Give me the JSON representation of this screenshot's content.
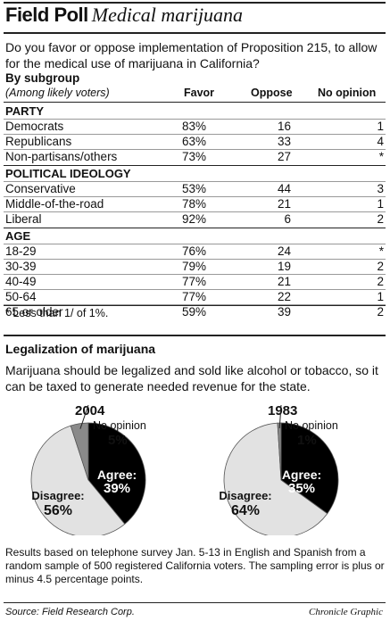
{
  "header": {
    "title_bold": "Field Poll",
    "title_italic": "Medical marijuana"
  },
  "question": "Do you favor or oppose implementation of Proposition 215, to allow for the medical use of marijuana in California?",
  "by_subgroup": "By subgroup",
  "among_label": "(Among likely voters)",
  "columns": {
    "favor": "Favor",
    "oppose": "Oppose",
    "no_opinion": "No opinion"
  },
  "sections": [
    {
      "name": "PARTY",
      "rows": [
        {
          "label": "Democrats",
          "favor": "83%",
          "oppose": "16",
          "no_opinion": "1"
        },
        {
          "label": "Republicans",
          "favor": "63%",
          "oppose": "33",
          "no_opinion": "4"
        },
        {
          "label": "Non-partisans/others",
          "favor": "73%",
          "oppose": "27",
          "no_opinion": "*"
        }
      ]
    },
    {
      "name": "POLITICAL IDEOLOGY",
      "rows": [
        {
          "label": "Conservative",
          "favor": "53%",
          "oppose": "44",
          "no_opinion": "3"
        },
        {
          "label": "Middle-of-the-road",
          "favor": "78%",
          "oppose": "21",
          "no_opinion": "1"
        },
        {
          "label": "Liberal",
          "favor": "92%",
          "oppose": "6",
          "no_opinion": "2"
        }
      ]
    },
    {
      "name": "AGE",
      "rows": [
        {
          "label": "18-29",
          "favor": "76%",
          "oppose": "24",
          "no_opinion": "*"
        },
        {
          "label": "30-39",
          "favor": "79%",
          "oppose": "19",
          "no_opinion": "2"
        },
        {
          "label": "40-49",
          "favor": "77%",
          "oppose": "21",
          "no_opinion": "2"
        },
        {
          "label": "50-64",
          "favor": "77%",
          "oppose": "22",
          "no_opinion": "1"
        },
        {
          "label": "65 or older",
          "favor": "59%",
          "oppose": "39",
          "no_opinion": "2"
        }
      ]
    }
  ],
  "footnote": "* Less than 1/ of 1%.",
  "legalization": {
    "title": "Legalization of marijuana",
    "question": "Marijuana should be legalized and sold like alcohol or tobacco,  so it can be taxed to generate needed revenue for the state."
  },
  "chart_data": [
    {
      "type": "pie",
      "title": "2004",
      "slices": [
        {
          "label": "Agree:",
          "value": 39,
          "display": "39%",
          "color": "#000000"
        },
        {
          "label": "Disagree:",
          "value": 56,
          "display": "56%",
          "color": "#e2e2e2"
        },
        {
          "label": "No opinion",
          "value": 5,
          "display": "5%",
          "color": "#8a8a8a"
        }
      ]
    },
    {
      "type": "pie",
      "title": "1983",
      "slices": [
        {
          "label": "Agree:",
          "value": 35,
          "display": "35%",
          "color": "#000000"
        },
        {
          "label": "Disagree:",
          "value": 64,
          "display": "64%",
          "color": "#e2e2e2"
        },
        {
          "label": "No opinion",
          "value": 1,
          "display": "1%",
          "color": "#8a8a8a"
        }
      ]
    }
  ],
  "results_text": "Results based on telephone survey Jan. 5-13 in English and Spanish from a random sample of 500 registered California voters. The sampling error is plus or minus 4.5 percentage points.",
  "source": "Source: Field Research Corp.",
  "credit": "Chronicle Graphic"
}
